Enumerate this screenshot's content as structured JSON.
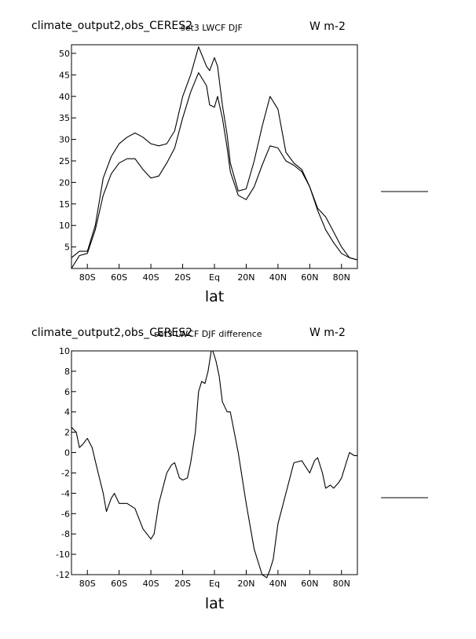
{
  "chart_data": [
    {
      "type": "line",
      "title": "climate_output2,obs_CERES2",
      "subtitle": "set3 LWCF DJF",
      "units": "W m-2",
      "xlabel": "lat",
      "xlim": [
        -90,
        90
      ],
      "ylim": [
        0,
        52
      ],
      "xticks": [
        -80,
        -60,
        -40,
        -20,
        0,
        20,
        40,
        60,
        80
      ],
      "xtick_labels": [
        "80S",
        "60S",
        "40S",
        "20S",
        "Eq",
        "20N",
        "40N",
        "60N",
        "80N"
      ],
      "yticks": [
        5,
        10,
        15,
        20,
        25,
        30,
        35,
        40,
        45,
        50
      ],
      "ytick_labels": [
        "5",
        "10",
        "15",
        "20",
        "25",
        "30",
        "35",
        "40",
        "45",
        "50"
      ],
      "legend_swatch": "right",
      "series": [
        {
          "x": [
            -90,
            -85,
            -80,
            -75,
            -70,
            -65,
            -60,
            -55,
            -50,
            -45,
            -40,
            -35,
            -30,
            -25,
            -20,
            -15,
            -10,
            -5,
            -3,
            0,
            2,
            5,
            8,
            10,
            15,
            20,
            25,
            30,
            35,
            40,
            45,
            50,
            55,
            60,
            65,
            70,
            75,
            80,
            85,
            90
          ],
          "values": [
            2.5,
            4,
            4,
            10,
            21,
            26,
            29,
            30.5,
            31.5,
            30.5,
            29,
            28.5,
            29,
            32,
            40,
            45,
            51.5,
            47,
            46,
            49,
            47,
            38,
            31,
            24.5,
            18,
            18.5,
            25,
            33,
            40,
            37,
            27,
            24.5,
            23,
            19,
            14,
            12,
            8.5,
            5,
            2.5,
            2
          ]
        },
        {
          "x": [
            -90,
            -85,
            -80,
            -75,
            -70,
            -65,
            -60,
            -55,
            -50,
            -45,
            -40,
            -35,
            -30,
            -25,
            -20,
            -15,
            -10,
            -5,
            -3,
            0,
            2,
            5,
            8,
            10,
            15,
            20,
            25,
            30,
            35,
            40,
            45,
            50,
            55,
            60,
            65,
            70,
            75,
            80,
            85,
            90
          ],
          "values": [
            0,
            3,
            3.5,
            9,
            17,
            22,
            24.5,
            25.5,
            25.5,
            23,
            21,
            21.5,
            24.5,
            28,
            35,
            41,
            45.5,
            42.5,
            38,
            37.5,
            40,
            35,
            28,
            22.5,
            17,
            16,
            19,
            24,
            28.5,
            28,
            25,
            24,
            22.5,
            19,
            13.5,
            9,
            6,
            3.5,
            2.5,
            2
          ]
        }
      ]
    },
    {
      "type": "line",
      "title": "climate_output2,obs_CERES2",
      "subtitle": "set3 LWCF DJF difference",
      "units": "W m-2",
      "xlabel": "lat",
      "xlim": [
        -90,
        90
      ],
      "ylim": [
        -12,
        10
      ],
      "xticks": [
        -80,
        -60,
        -40,
        -20,
        0,
        20,
        40,
        60,
        80
      ],
      "xtick_labels": [
        "80S",
        "60S",
        "40S",
        "20S",
        "Eq",
        "20N",
        "40N",
        "60N",
        "80N"
      ],
      "yticks": [
        -12,
        -10,
        -8,
        -6,
        -4,
        -2,
        0,
        2,
        4,
        6,
        8,
        10
      ],
      "ytick_labels": [
        "-12",
        "-10",
        "-8",
        "-6",
        "-4",
        "-2",
        "0",
        "2",
        "4",
        "6",
        "8",
        "10"
      ],
      "legend_swatch": "right",
      "series": [
        {
          "x": [
            -90,
            -87,
            -85,
            -83,
            -80,
            -77,
            -74,
            -70,
            -68,
            -65,
            -63,
            -60,
            -55,
            -50,
            -45,
            -40,
            -38,
            -35,
            -30,
            -27,
            -25,
            -22,
            -20,
            -17,
            -15,
            -12,
            -10,
            -8,
            -6,
            -4,
            -2,
            -1,
            0,
            1,
            3,
            5,
            8,
            10,
            15,
            20,
            25,
            30,
            33,
            35,
            37,
            40,
            45,
            50,
            55,
            60,
            63,
            65,
            68,
            70,
            73,
            75,
            78,
            80,
            83,
            85,
            88,
            90
          ],
          "values": [
            2.5,
            2,
            0.5,
            0.8,
            1.4,
            0.5,
            -1.5,
            -4,
            -5.8,
            -4.5,
            -4,
            -5,
            -5,
            -5.5,
            -7.5,
            -8.5,
            -8,
            -5,
            -2,
            -1.2,
            -1,
            -2.5,
            -2.7,
            -2.5,
            -1,
            2,
            6,
            7,
            6.8,
            8,
            10,
            10,
            9.5,
            9,
            7.5,
            5,
            4,
            4,
            0,
            -5,
            -9.5,
            -12,
            -12.3,
            -11.5,
            -10.5,
            -7,
            -4,
            -1,
            -0.8,
            -2,
            -0.8,
            -0.5,
            -2,
            -3.5,
            -3.2,
            -3.5,
            -3,
            -2.5,
            -1,
            0,
            -0.3,
            -0.3
          ]
        }
      ]
    }
  ]
}
